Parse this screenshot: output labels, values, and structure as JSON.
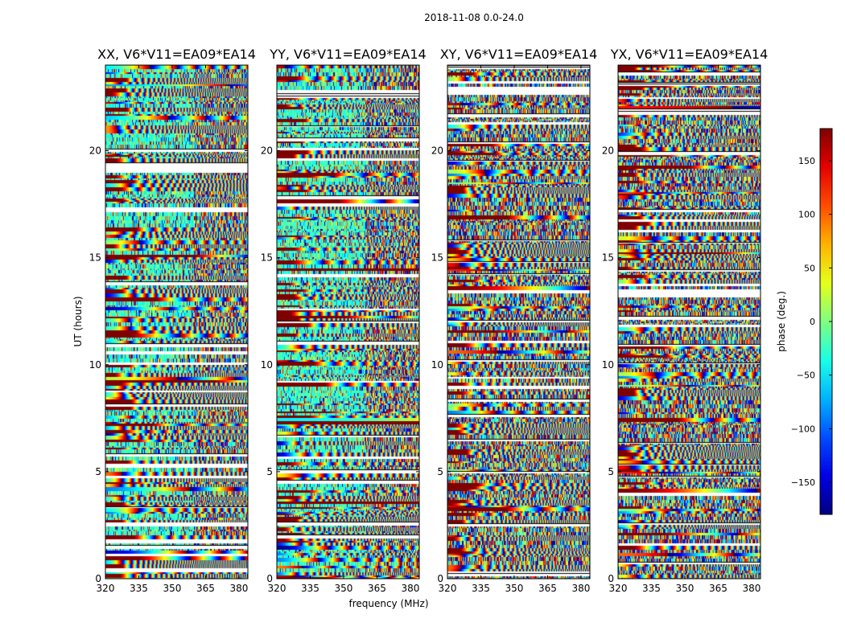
{
  "figure": {
    "suptitle": "2018-11-08 0.0-24.0",
    "xlabel": "frequency (MHz)",
    "ylabel": "UT (hours)",
    "colorbar_label": "phase (deg.)",
    "colorbar_ticks": [
      150,
      100,
      50,
      0,
      -50,
      -100,
      -150
    ],
    "colorbar_range": [
      -180,
      180
    ],
    "colormap": "jet"
  },
  "chart_data": [
    {
      "type": "heatmap",
      "title": "XX, V6*V11=EA09*EA14",
      "xlabel": "frequency (MHz)",
      "ylabel": "UT (hours)",
      "xlim": [
        320,
        384
      ],
      "ylim": [
        0,
        24
      ],
      "xticks": [
        320,
        335,
        350,
        365,
        380
      ],
      "yticks": [
        0,
        5,
        10,
        15,
        20
      ],
      "value": "phase (deg.)",
      "vrange": [
        -180,
        180
      ]
    },
    {
      "type": "heatmap",
      "title": "YY, V6*V11=EA09*EA14",
      "xlabel": "frequency (MHz)",
      "ylabel": "UT (hours)",
      "xlim": [
        320,
        384
      ],
      "ylim": [
        0,
        24
      ],
      "xticks": [
        320,
        335,
        350,
        365,
        380
      ],
      "yticks": [
        0,
        5,
        10,
        15,
        20
      ],
      "value": "phase (deg.)",
      "vrange": [
        -180,
        180
      ]
    },
    {
      "type": "heatmap",
      "title": "XY, V6*V11=EA09*EA14",
      "xlabel": "frequency (MHz)",
      "ylabel": "UT (hours)",
      "xlim": [
        320,
        384
      ],
      "ylim": [
        0,
        24
      ],
      "xticks": [
        320,
        335,
        350,
        365,
        380
      ],
      "yticks": [
        0,
        5,
        10,
        15,
        20
      ],
      "value": "phase (deg.)",
      "vrange": [
        -180,
        180
      ]
    },
    {
      "type": "heatmap",
      "title": "YX, V6*V11=EA09*EA14",
      "xlabel": "frequency (MHz)",
      "ylabel": "UT (hours)",
      "xlim": [
        320,
        384
      ],
      "ylim": [
        0,
        24
      ],
      "xticks": [
        320,
        335,
        350,
        365,
        380
      ],
      "yticks": [
        0,
        5,
        10,
        15,
        20
      ],
      "value": "phase (deg.)",
      "vrange": [
        -180,
        180
      ]
    }
  ]
}
